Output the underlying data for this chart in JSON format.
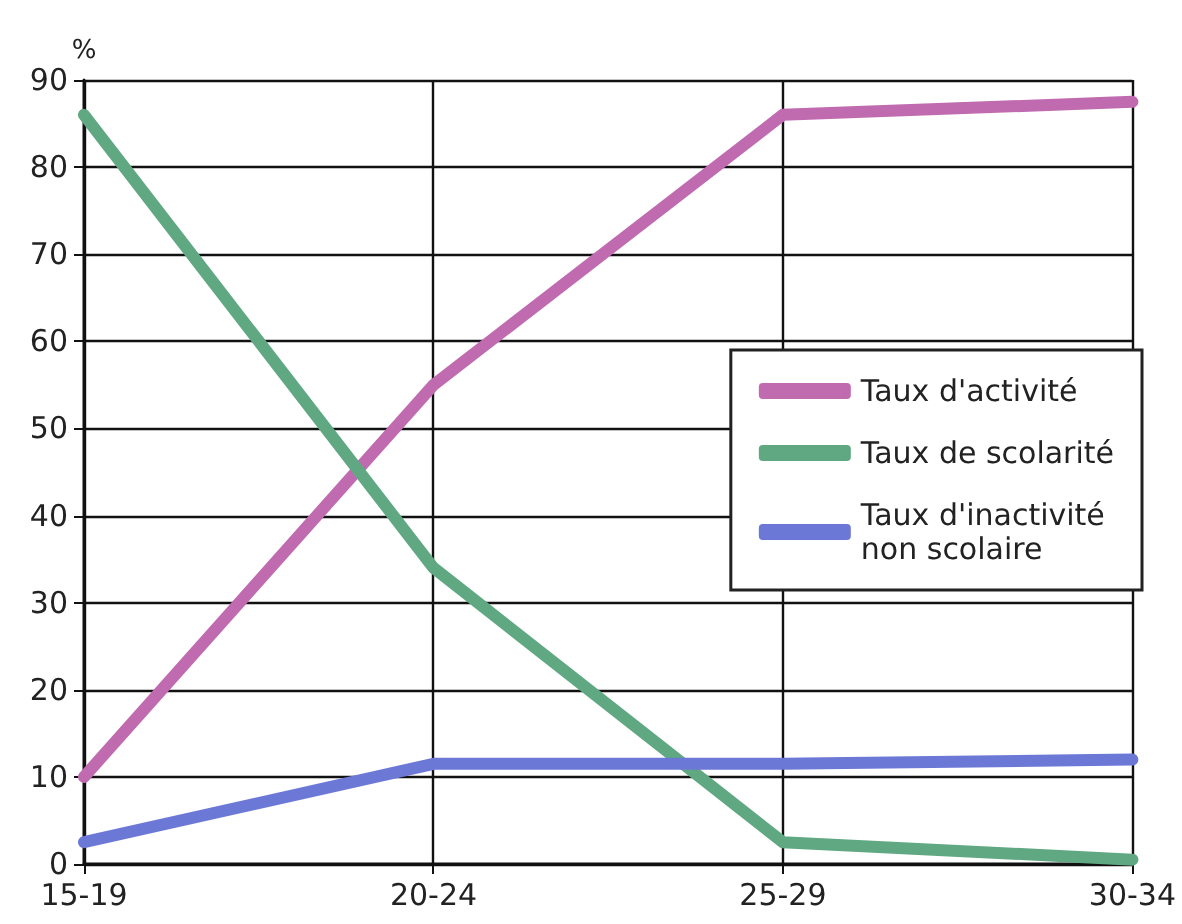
{
  "chart_data": {
    "type": "line",
    "ylabel": "%",
    "categories": [
      "15-19",
      "20-24",
      "25-29",
      "30-34"
    ],
    "series": [
      {
        "name": "Taux d'activité",
        "color": "#c06ab0",
        "values": [
          10,
          55,
          86,
          87.5
        ]
      },
      {
        "name": "Taux de scolarité",
        "color": "#5fa882",
        "values": [
          86,
          34,
          2.5,
          0.5
        ]
      },
      {
        "name": "Taux d'inactivité\nnon scolaire",
        "color": "#6c78d6",
        "values": [
          2.5,
          11.5,
          11.5,
          12
        ]
      }
    ],
    "ylim": [
      0,
      90
    ],
    "yticks": [
      0,
      10,
      20,
      30,
      40,
      50,
      60,
      70,
      80,
      90
    ],
    "grid": true,
    "legend": "right",
    "marker": "none",
    "line_style": "solid"
  }
}
